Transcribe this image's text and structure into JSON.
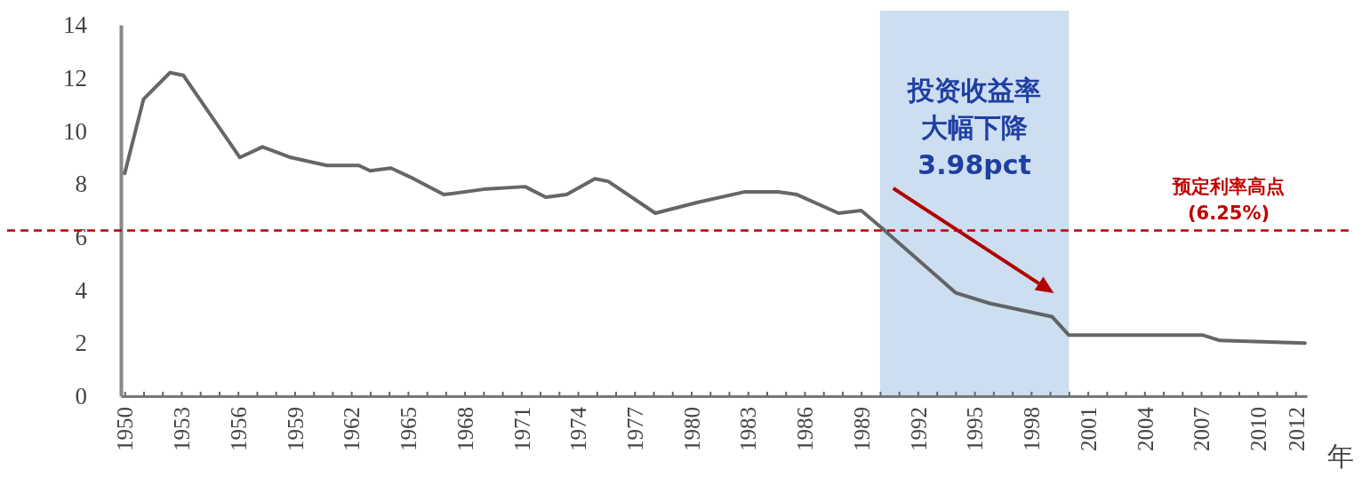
{
  "chart_data": {
    "type": "line",
    "xlabel": "年",
    "x": [
      1950,
      1951,
      1952.4,
      1953.1,
      1956.1,
      1957.3,
      1958.8,
      1960.7,
      1962.4,
      1963,
      1964.1,
      1965.3,
      1966.9,
      1969,
      1971.2,
      1972.3,
      1973.4,
      1974.9,
      1975.6,
      1978.1,
      1980.3,
      1982.8,
      1984.6,
      1985.6,
      1987.8,
      1989,
      1990,
      1994,
      1995.8,
      1999.1,
      2000,
      2007.1,
      2008,
      2012.5
    ],
    "series": [
      {
        "color": "#555555",
        "values": [
          8.4,
          11.2,
          12.2,
          12.1,
          9.0,
          9.4,
          9.0,
          8.7,
          8.7,
          8.5,
          8.6,
          8.2,
          7.6,
          7.8,
          7.9,
          7.5,
          7.6,
          8.2,
          8.1,
          6.9,
          7.3,
          7.7,
          7.7,
          7.6,
          6.9,
          7.0,
          6.4,
          3.9,
          3.5,
          3.0,
          2.3,
          2.3,
          2.1,
          2.0
        ]
      }
    ],
    "xlim": [
      1949.8,
      2012.6
    ],
    "xticks": [
      1950,
      {
        "value": 1951,
        "label": null
      },
      {
        "value": 1952,
        "label": null
      },
      1953,
      {
        "value": 1954,
        "label": null
      },
      {
        "value": 1955,
        "label": null
      },
      1956,
      {
        "value": 1957,
        "label": null
      },
      {
        "value": 1958,
        "label": null
      },
      1959,
      {
        "value": 1960,
        "label": null
      },
      {
        "value": 1961,
        "label": null
      },
      1962,
      {
        "value": 1963,
        "label": null
      },
      {
        "value": 1964,
        "label": null
      },
      1965,
      {
        "value": 1966,
        "label": null
      },
      {
        "value": 1967,
        "label": null
      },
      1968,
      {
        "value": 1969,
        "label": null
      },
      {
        "value": 1970,
        "label": null
      },
      1971,
      {
        "value": 1972,
        "label": null
      },
      {
        "value": 1973,
        "label": null
      },
      1974,
      {
        "value": 1975,
        "label": null
      },
      {
        "value": 1976,
        "label": null
      },
      1977,
      {
        "value": 1978,
        "label": null
      },
      {
        "value": 1979,
        "label": null
      },
      1980,
      {
        "value": 1981,
        "label": null
      },
      {
        "value": 1982,
        "label": null
      },
      1983,
      {
        "value": 1984,
        "label": null
      },
      {
        "value": 1985,
        "label": null
      },
      1986,
      {
        "value": 1987,
        "label": null
      },
      {
        "value": 1988,
        "label": null
      },
      1989,
      {
        "value": 1990,
        "label": null
      },
      {
        "value": 1991,
        "label": null
      },
      1992,
      {
        "value": 1993,
        "label": null
      },
      {
        "value": 1994,
        "label": null
      },
      1995,
      {
        "value": 1996,
        "label": null
      },
      {
        "value": 1997,
        "label": null
      },
      1998,
      {
        "value": 1999,
        "label": null
      },
      {
        "value": 2000,
        "label": null
      },
      2001,
      {
        "value": 2002,
        "label": null
      },
      {
        "value": 2003,
        "label": null
      },
      2004,
      {
        "value": 2005,
        "label": null
      },
      {
        "value": 2006,
        "label": null
      },
      2007,
      {
        "value": 2008,
        "label": null
      },
      {
        "value": 2009,
        "label": null
      },
      2010,
      {
        "value": 2011,
        "label": null
      },
      2012
    ],
    "ylim": [
      0,
      14
    ],
    "yticks": [
      0,
      2,
      4,
      6,
      8,
      10,
      12,
      14
    ],
    "grid": false,
    "line_style": "solid",
    "marker": "none",
    "ref_lines": [
      {
        "axis": "y",
        "value": 6.25,
        "label": "预定利率高点\n(6.25%)",
        "color": "#c00000",
        "line_style": "dashed"
      }
    ],
    "bands": [
      {
        "axis": "x",
        "from": 1990,
        "to": 2000,
        "color": "#c9dcef"
      }
    ],
    "annotations": [
      "投资收益率",
      "大幅下降",
      "3.98pct"
    ]
  }
}
